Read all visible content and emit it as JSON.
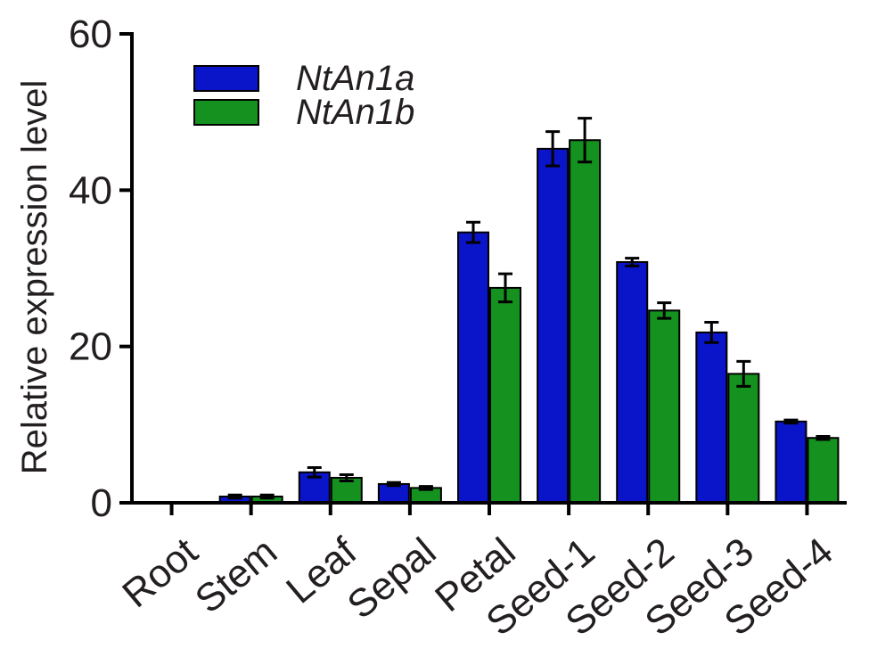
{
  "chart_data": {
    "type": "bar",
    "title": "",
    "xlabel": "",
    "ylabel": "Relative expression level",
    "ylim": [
      0,
      60
    ],
    "yticks": [
      0,
      20,
      40,
      60
    ],
    "grid": false,
    "legend_position": "top-left",
    "categories": [
      "Root",
      "Stem",
      "Leaf",
      "Sepal",
      "Petal",
      "Seed-1",
      "Seed-2",
      "Seed-3",
      "Seed-4"
    ],
    "series": [
      {
        "name": "NtAn1a",
        "color": "#0a14c8",
        "values": [
          0.0,
          0.8,
          3.9,
          2.4,
          34.6,
          45.3,
          30.8,
          21.8,
          10.4
        ],
        "errors": [
          0.0,
          0.2,
          0.6,
          0.2,
          1.3,
          2.2,
          0.5,
          1.3,
          0.2
        ]
      },
      {
        "name": "NtAn1b",
        "color": "#15911f",
        "values": [
          0.1,
          0.8,
          3.2,
          1.9,
          27.5,
          46.4,
          24.6,
          16.5,
          8.3
        ],
        "errors": [
          0.0,
          0.2,
          0.4,
          0.2,
          1.8,
          2.8,
          1.0,
          1.6,
          0.2
        ]
      }
    ]
  }
}
